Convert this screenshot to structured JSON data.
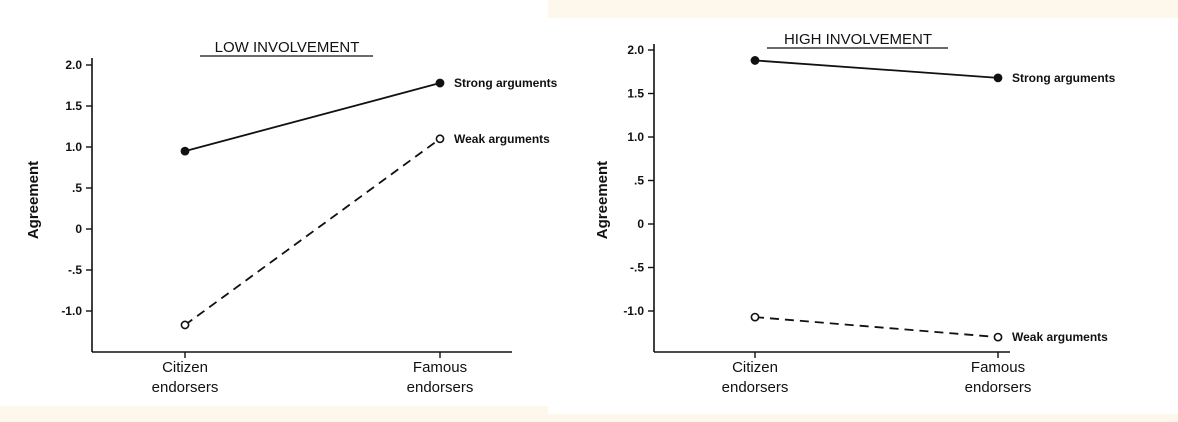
{
  "chart_data": [
    {
      "type": "line",
      "title": "LOW INVOLVEMENT",
      "xlabel": "",
      "ylabel": "Agreement",
      "categories": [
        "Citizen endorsers",
        "Famous endorsers"
      ],
      "category_lines": [
        [
          "Citizen",
          "endorsers"
        ],
        [
          "Famous",
          "endorsers"
        ]
      ],
      "yticks": [
        -1.0,
        -0.5,
        0,
        0.5,
        1.0,
        1.5,
        2.0
      ],
      "ytick_labels": [
        "-1.0",
        "-.5",
        "0",
        ".5",
        "1.0",
        "1.5",
        "2.0"
      ],
      "ylim": [
        -1.5,
        2.0
      ],
      "grid": false,
      "series": [
        {
          "name": "Strong arguments",
          "values": [
            0.95,
            1.78
          ],
          "line": "solid",
          "marker": "filled"
        },
        {
          "name": "Weak arguments",
          "values": [
            -1.17,
            1.1
          ],
          "line": "dashed",
          "marker": "open"
        }
      ]
    },
    {
      "type": "line",
      "title": "HIGH INVOLVEMENT",
      "xlabel": "",
      "ylabel": "Agreement",
      "categories": [
        "Citizen endorsers",
        "Famous endorsers"
      ],
      "category_lines": [
        [
          "Citizen",
          "endorsers"
        ],
        [
          "Famous",
          "endorsers"
        ]
      ],
      "yticks": [
        -1.0,
        -0.5,
        0,
        0.5,
        1.0,
        1.5,
        2.0
      ],
      "ytick_labels": [
        "-1.0",
        "-.5",
        "0",
        ".5",
        "1.0",
        "1.5",
        "2.0"
      ],
      "ylim": [
        -1.5,
        2.0
      ],
      "grid": false,
      "series": [
        {
          "name": "Strong arguments",
          "values": [
            1.88,
            1.68
          ],
          "line": "solid",
          "marker": "filled"
        },
        {
          "name": "Weak arguments",
          "values": [
            -1.07,
            -1.3
          ],
          "line": "dashed",
          "marker": "open"
        }
      ]
    }
  ]
}
